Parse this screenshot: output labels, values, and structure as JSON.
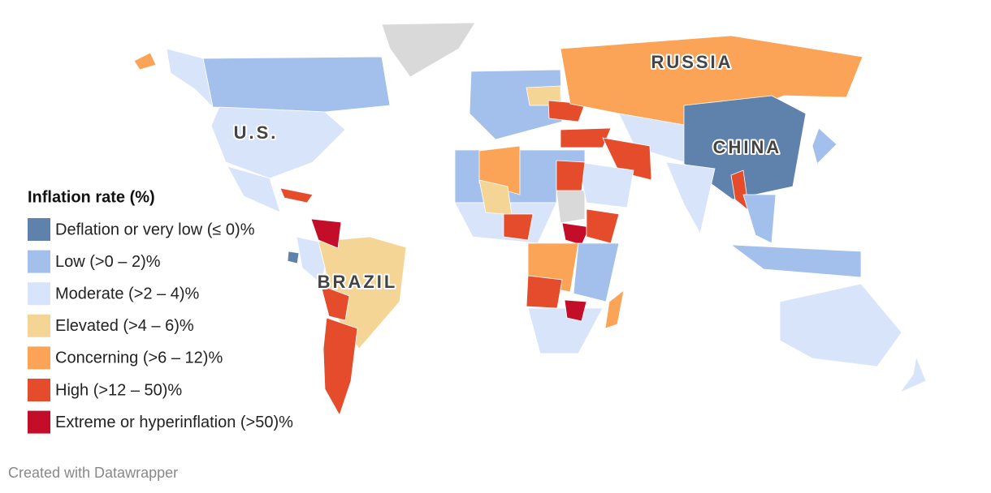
{
  "legend": {
    "title": "Inflation rate (%)",
    "items": [
      {
        "label": "Deflation or very low (≤ 0)%",
        "color": "#5f82ad"
      },
      {
        "label": "Low (>0 – 2)%",
        "color": "#a2c0eb"
      },
      {
        "label": "Moderate (>2 – 4)%",
        "color": "#d8e4f9"
      },
      {
        "label": "Elevated (>4 – 6)%",
        "color": "#f5d596"
      },
      {
        "label": "Concerning (>6 – 12)%",
        "color": "#fba457"
      },
      {
        "label": "High (>12 – 50)%",
        "color": "#e44c2c"
      },
      {
        "label": "Extreme or hyperinflation (>50)%",
        "color": "#c30d29"
      }
    ]
  },
  "map_labels": [
    "U.S.",
    "RUSSIA",
    "CHINA",
    "BRAZIL"
  ],
  "footer": "Created with Datawrapper"
}
